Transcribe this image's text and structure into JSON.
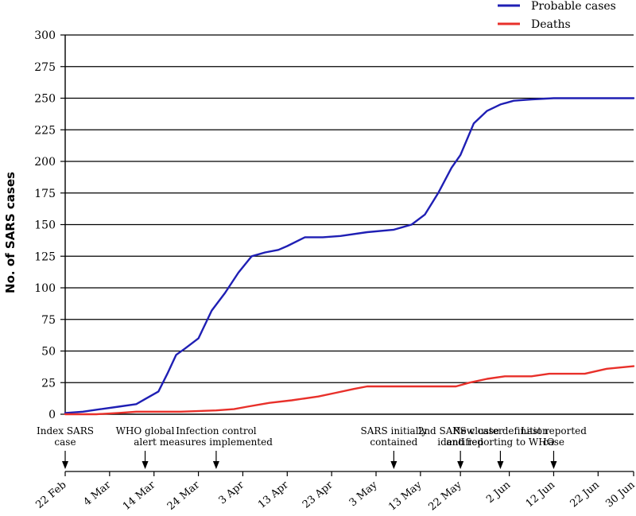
{
  "chart_data": {
    "type": "line",
    "ylabel": "No. of SARS cases",
    "xlabel": "",
    "ylim": [
      0,
      300
    ],
    "yticks": [
      0,
      25,
      50,
      75,
      100,
      125,
      150,
      175,
      200,
      225,
      250,
      275,
      300
    ],
    "x_range": [
      "2003-02-22",
      "2003-06-30"
    ],
    "x_tick_labels": [
      {
        "label": "22 Feb",
        "date": "2003-02-22"
      },
      {
        "label": "4 Mar",
        "date": "2003-03-04"
      },
      {
        "label": "14 Mar",
        "date": "2003-03-14"
      },
      {
        "label": "24 Mar",
        "date": "2003-03-24"
      },
      {
        "label": "3 Apr",
        "date": "2003-04-03"
      },
      {
        "label": "13 Apr",
        "date": "2003-04-13"
      },
      {
        "label": "23 Apr",
        "date": "2003-04-23"
      },
      {
        "label": "3 May",
        "date": "2003-05-03"
      },
      {
        "label": "13 May",
        "date": "2003-05-13"
      },
      {
        "label": "22 May",
        "date": "2003-05-22"
      },
      {
        "label": "2 Jun",
        "date": "2003-06-02"
      },
      {
        "label": "12 Jun",
        "date": "2003-06-12"
      },
      {
        "label": "22 Jun",
        "date": "2003-06-22"
      },
      {
        "label": "30 Jun",
        "date": "2003-06-30"
      }
    ],
    "grid": true,
    "legend": "top-right",
    "series": [
      {
        "name": "Probable cases",
        "color": "#1f1fb4",
        "x": [
          "2003-02-22",
          "2003-02-26",
          "2003-03-02",
          "2003-03-06",
          "2003-03-10",
          "2003-03-12",
          "2003-03-15",
          "2003-03-17",
          "2003-03-19",
          "2003-03-21",
          "2003-03-24",
          "2003-03-27",
          "2003-03-30",
          "2003-04-02",
          "2003-04-05",
          "2003-04-08",
          "2003-04-11",
          "2003-04-13",
          "2003-04-17",
          "2003-04-21",
          "2003-04-25",
          "2003-05-01",
          "2003-05-07",
          "2003-05-11",
          "2003-05-14",
          "2003-05-17",
          "2003-05-20",
          "2003-05-22",
          "2003-05-25",
          "2003-05-28",
          "2003-05-31",
          "2003-06-03",
          "2003-06-07",
          "2003-06-12",
          "2003-06-17",
          "2003-06-22",
          "2003-06-26",
          "2003-06-30"
        ],
        "y": [
          1,
          2,
          4,
          6,
          8,
          12,
          18,
          32,
          47,
          52,
          60,
          82,
          96,
          112,
          125,
          128,
          130,
          133,
          140,
          140,
          141,
          144,
          146,
          150,
          158,
          175,
          195,
          205,
          230,
          240,
          245,
          248,
          249,
          250,
          250,
          250,
          250,
          250
        ]
      },
      {
        "name": "Deaths",
        "color": "#e8302a",
        "x": [
          "2003-02-22",
          "2003-03-01",
          "2003-03-06",
          "2003-03-10",
          "2003-03-20",
          "2003-03-28",
          "2003-04-01",
          "2003-04-04",
          "2003-04-09",
          "2003-04-14",
          "2003-04-20",
          "2003-04-24",
          "2003-04-28",
          "2003-05-01",
          "2003-05-10",
          "2003-05-21",
          "2003-05-24",
          "2003-05-28",
          "2003-06-01",
          "2003-06-07",
          "2003-06-11",
          "2003-06-19",
          "2003-06-24",
          "2003-06-30"
        ],
        "y": [
          0,
          0,
          1,
          2,
          2,
          3,
          4,
          6,
          9,
          11,
          14,
          17,
          20,
          22,
          22,
          22,
          25,
          28,
          30,
          30,
          32,
          32,
          36,
          38
        ]
      }
    ],
    "annotations": [
      {
        "lines": [
          "Index SARS",
          "case"
        ],
        "date": "2003-02-22"
      },
      {
        "lines": [
          "WHO global",
          "alert"
        ],
        "date": "2003-03-12"
      },
      {
        "lines": [
          "Infection control",
          "measures implemented"
        ],
        "date": "2003-03-28"
      },
      {
        "lines": [
          "SARS initially",
          "contained"
        ],
        "date": "2003-05-07"
      },
      {
        "lines": [
          "2nd SARS cluster",
          "identified"
        ],
        "date": "2003-05-22"
      },
      {
        "lines": [
          "New case definition",
          "and reporting to WHO"
        ],
        "date": "2003-05-31"
      },
      {
        "lines": [
          "Last reported",
          "case"
        ],
        "date": "2003-06-12"
      }
    ]
  }
}
